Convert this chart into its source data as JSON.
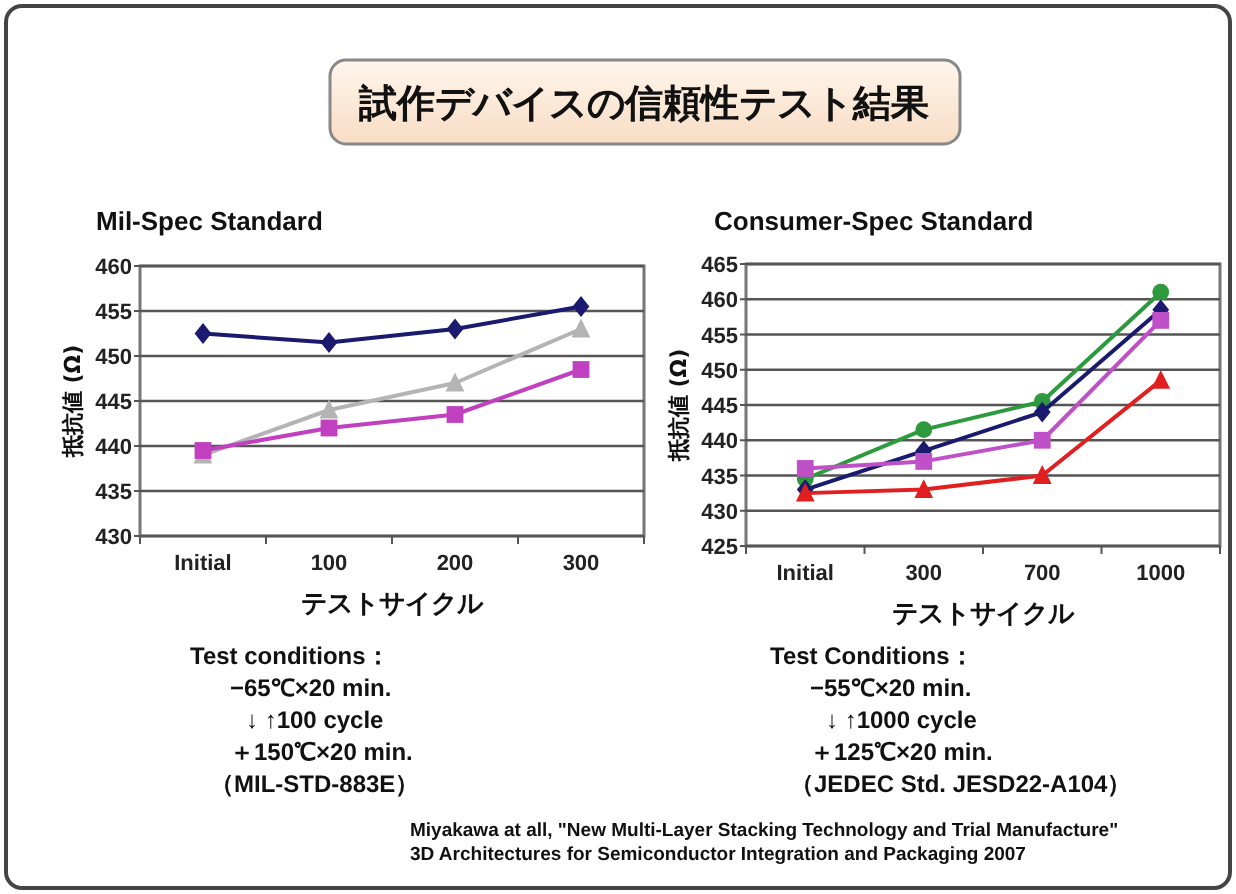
{
  "chart_data": [
    {
      "type": "line",
      "title": "Mil-Spec Standard",
      "xlabel": "テストサイクル",
      "ylabel": "抵抗値 (Ω)",
      "categories": [
        "Initial",
        "100",
        "200",
        "300"
      ],
      "ylim": [
        430,
        460
      ],
      "yticks": [
        430,
        435,
        440,
        445,
        450,
        455,
        460
      ],
      "grid": "y",
      "series": [
        {
          "color": "#1a1a6e",
          "marker": "diamond",
          "values": [
            452.5,
            451.5,
            453,
            455.5
          ]
        },
        {
          "color": "#b4b4b4",
          "marker": "triangle",
          "values": [
            439,
            444,
            447,
            453
          ]
        },
        {
          "color": "#c040c0",
          "marker": "square",
          "values": [
            439.5,
            442,
            443.5,
            448.5
          ]
        }
      ],
      "annotations": [
        "試作デバイスの信頼性テスト結果",
        "Test conditions：",
        "−65℃×20 min.",
        "↓ ↑100 cycle",
        "＋150℃×20 min.",
        "（MIL-STD-883E）"
      ]
    },
    {
      "type": "line",
      "title": "Consumer-Spec Standard",
      "xlabel": "テストサイクル",
      "ylabel": "抵抗値 (Ω)",
      "categories": [
        "Initial",
        "300",
        "700",
        "1000"
      ],
      "ylim": [
        425,
        465
      ],
      "yticks": [
        425,
        430,
        435,
        440,
        445,
        450,
        455,
        460,
        465
      ],
      "grid": "y",
      "series": [
        {
          "color": "#2e9a3e",
          "marker": "circle",
          "values": [
            434.5,
            441.5,
            445.5,
            461
          ]
        },
        {
          "color": "#1a1a6e",
          "marker": "diamond",
          "values": [
            433,
            438.5,
            444,
            458.5
          ]
        },
        {
          "color": "#c050c8",
          "marker": "square",
          "values": [
            436,
            437,
            440,
            457
          ]
        },
        {
          "color": "#e02020",
          "marker": "triangle",
          "values": [
            432.5,
            433,
            435,
            448.5
          ]
        }
      ],
      "annotations": [
        "Test Conditions：",
        "−55℃×20 min.",
        "↓ ↑1000 cycle",
        "＋125℃×20 min.",
        "（JEDEC Std.  JESD22-A104）",
        "Miyakawa at all, \"New Multi-Layer Stacking Technology and Trial Manufacture\"",
        "3D Architectures for Semiconductor Integration and Packaging 2007"
      ]
    }
  ]
}
